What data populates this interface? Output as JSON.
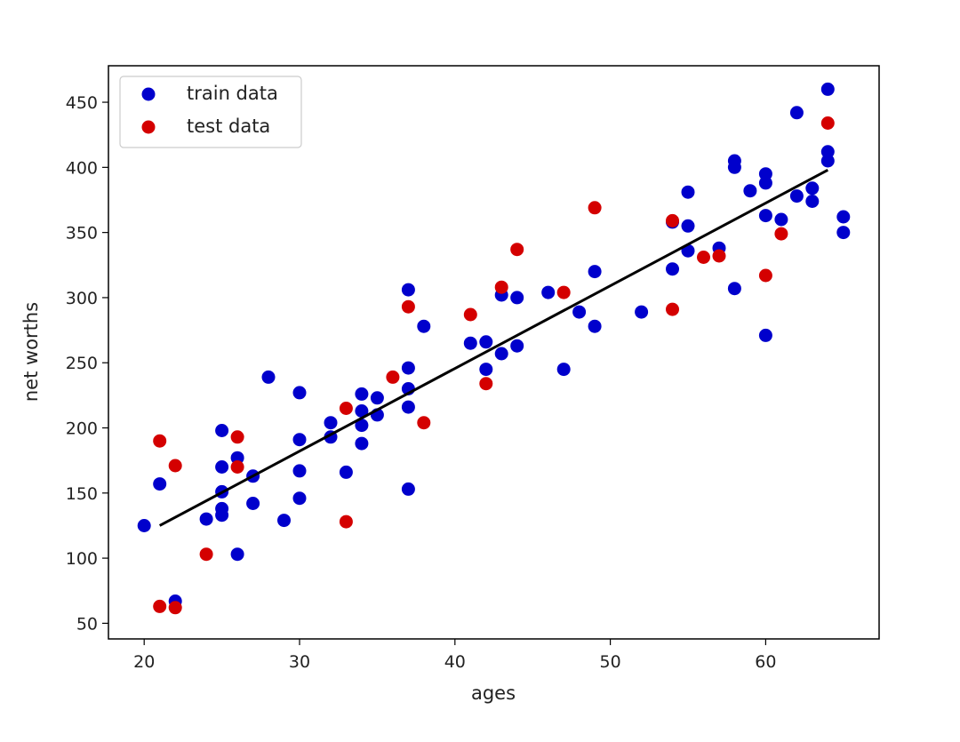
{
  "chart_data": {
    "type": "scatter",
    "title": "",
    "xlabel": "ages",
    "ylabel": "net worths",
    "xlim": [
      17.7,
      67.3
    ],
    "ylim": [
      38,
      478
    ],
    "xticks": [
      20,
      30,
      40,
      50,
      60
    ],
    "yticks": [
      50,
      100,
      150,
      200,
      250,
      300,
      350,
      400,
      450
    ],
    "grid": false,
    "legend_position": "top-left",
    "series": [
      {
        "name": "train data",
        "color": "#0000cc",
        "points": [
          [
            20,
            125
          ],
          [
            21,
            157
          ],
          [
            22,
            67
          ],
          [
            24,
            130
          ],
          [
            25,
            198
          ],
          [
            25,
            170
          ],
          [
            25,
            151
          ],
          [
            25,
            138
          ],
          [
            25,
            133
          ],
          [
            26,
            177
          ],
          [
            26,
            103
          ],
          [
            27,
            163
          ],
          [
            27,
            142
          ],
          [
            28,
            239
          ],
          [
            29,
            129
          ],
          [
            30,
            227
          ],
          [
            30,
            191
          ],
          [
            30,
            167
          ],
          [
            30,
            146
          ],
          [
            32,
            204
          ],
          [
            32,
            193
          ],
          [
            33,
            166
          ],
          [
            34,
            226
          ],
          [
            34,
            213
          ],
          [
            34,
            202
          ],
          [
            34,
            188
          ],
          [
            35,
            223
          ],
          [
            35,
            210
          ],
          [
            37,
            306
          ],
          [
            37,
            246
          ],
          [
            37,
            230
          ],
          [
            37,
            216
          ],
          [
            37,
            153
          ],
          [
            38,
            278
          ],
          [
            41,
            265
          ],
          [
            42,
            266
          ],
          [
            42,
            245
          ],
          [
            43,
            302
          ],
          [
            43,
            257
          ],
          [
            44,
            300
          ],
          [
            44,
            263
          ],
          [
            46,
            304
          ],
          [
            47,
            245
          ],
          [
            48,
            289
          ],
          [
            49,
            320
          ],
          [
            49,
            278
          ],
          [
            52,
            289
          ],
          [
            54,
            358
          ],
          [
            54,
            322
          ],
          [
            55,
            381
          ],
          [
            55,
            355
          ],
          [
            55,
            336
          ],
          [
            57,
            338
          ],
          [
            58,
            405
          ],
          [
            58,
            400
          ],
          [
            58,
            307
          ],
          [
            59,
            382
          ],
          [
            60,
            395
          ],
          [
            60,
            388
          ],
          [
            60,
            363
          ],
          [
            60,
            271
          ],
          [
            61,
            360
          ],
          [
            62,
            442
          ],
          [
            62,
            378
          ],
          [
            63,
            384
          ],
          [
            63,
            374
          ],
          [
            64,
            460
          ],
          [
            64,
            412
          ],
          [
            64,
            405
          ],
          [
            65,
            362
          ],
          [
            65,
            350
          ]
        ]
      },
      {
        "name": "test data",
        "color": "#d40000",
        "points": [
          [
            21,
            190
          ],
          [
            21,
            63
          ],
          [
            22,
            171
          ],
          [
            22,
            62
          ],
          [
            24,
            103
          ],
          [
            26,
            193
          ],
          [
            26,
            170
          ],
          [
            33,
            215
          ],
          [
            33,
            128
          ],
          [
            36,
            239
          ],
          [
            37,
            293
          ],
          [
            38,
            204
          ],
          [
            41,
            287
          ],
          [
            42,
            234
          ],
          [
            43,
            308
          ],
          [
            44,
            337
          ],
          [
            47,
            304
          ],
          [
            49,
            369
          ],
          [
            54,
            359
          ],
          [
            54,
            291
          ],
          [
            56,
            331
          ],
          [
            57,
            332
          ],
          [
            60,
            317
          ],
          [
            61,
            349
          ],
          [
            64,
            434
          ]
        ]
      }
    ],
    "fit_line": {
      "name": "regression line",
      "color": "#000000",
      "x": [
        21,
        64
      ],
      "y": [
        125,
        398
      ]
    }
  }
}
